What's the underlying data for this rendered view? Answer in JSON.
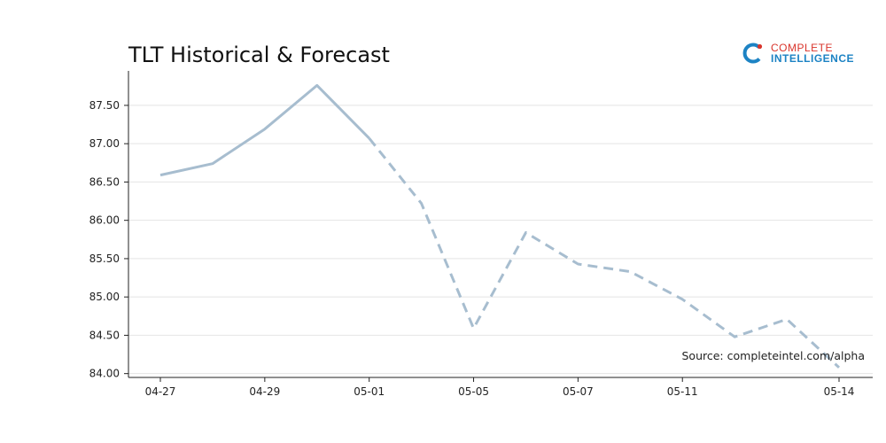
{
  "chart_data": {
    "type": "line",
    "title": "TLT Historical & Forecast",
    "x": [
      "04-27",
      "04-28",
      "04-29",
      "04-30",
      "05-01",
      "05-02",
      "05-05",
      "05-06",
      "05-07",
      "05-08",
      "05-11",
      "05-12",
      "05-13",
      "05-14"
    ],
    "x_tick_labels": [
      "04-27",
      "04-29",
      "05-01",
      "05-05",
      "05-07",
      "05-11",
      "05-14"
    ],
    "series": [
      {
        "values": [
          86.59,
          86.74,
          87.19,
          87.76,
          87.07,
          null,
          null,
          null,
          null,
          null,
          null,
          null,
          null,
          null
        ]
      },
      {
        "values": [
          null,
          null,
          null,
          null,
          87.07,
          86.22,
          84.59,
          85.84,
          85.43,
          85.33,
          84.97,
          84.48,
          84.71,
          84.08
        ]
      }
    ],
    "y_ticks": [
      84.0,
      84.5,
      85.0,
      85.5,
      86.0,
      86.5,
      87.0,
      87.5
    ],
    "y_tick_labels": [
      "84.00",
      "84.50",
      "85.00",
      "85.50",
      "86.00",
      "86.50",
      "87.00",
      "87.50"
    ],
    "ylim": [
      83.95,
      87.95
    ],
    "grid": "horizontal",
    "line_color": "#a7bdcf",
    "source_text": "Source: completeintel.com/alpha"
  },
  "logo": {
    "line1": "COMPLETE",
    "line2": "INTELLIGENCE",
    "icon": "ci-logo-icon",
    "colors": {
      "red": "#d9342b",
      "blue": "#1d83c4"
    }
  }
}
